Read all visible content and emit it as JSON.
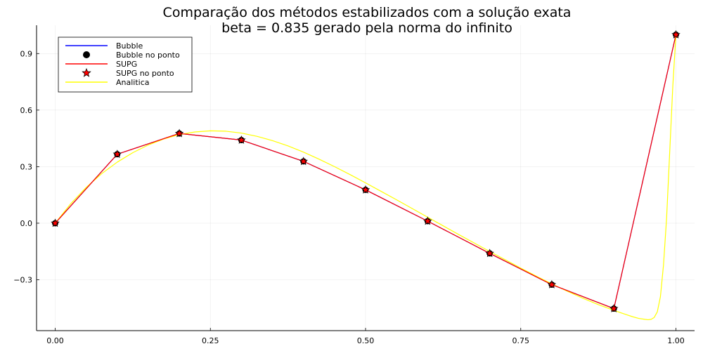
{
  "chart_data": {
    "type": "line",
    "title": "Comparação dos métodos estabilizados com a solução exata",
    "subtitle": "beta = 0.835 gerado pela norma do infinito",
    "xlabel": "",
    "ylabel": "",
    "xlim": [
      -0.03,
      1.03
    ],
    "ylim": [
      -0.57,
      1.05
    ],
    "grid": true,
    "legend_position": "top-left",
    "x_ticks": [
      0.0,
      0.25,
      0.5,
      0.75,
      1.0
    ],
    "x_tick_labels": [
      "0.00",
      "0.25",
      "0.50",
      "0.75",
      "1.00"
    ],
    "y_ticks": [
      -0.3,
      0.0,
      0.3,
      0.6,
      0.9
    ],
    "y_tick_labels": [
      "−0.3",
      "0.0",
      "0.3",
      "0.6",
      "0.9"
    ],
    "x": [
      0.0,
      0.1,
      0.2,
      0.3,
      0.4,
      0.5,
      0.6,
      0.7,
      0.8,
      0.9,
      1.0
    ],
    "series": [
      {
        "name": "Bubble",
        "kind": "line",
        "color": "#0000ff",
        "values": [
          0.0,
          0.366,
          0.476,
          0.441,
          0.328,
          0.177,
          0.011,
          -0.16,
          -0.326,
          -0.453,
          1.0
        ]
      },
      {
        "name": "Bubble no ponto",
        "kind": "marker",
        "marker": "circle",
        "color": "#000000",
        "values": [
          0.0,
          0.366,
          0.476,
          0.441,
          0.328,
          0.177,
          0.011,
          -0.16,
          -0.326,
          -0.453,
          1.0
        ]
      },
      {
        "name": "SUPG",
        "kind": "line",
        "color": "#ff0000",
        "values": [
          0.0,
          0.366,
          0.476,
          0.441,
          0.328,
          0.177,
          0.011,
          -0.16,
          -0.326,
          -0.453,
          1.0
        ]
      },
      {
        "name": "SUPG no ponto",
        "kind": "marker",
        "marker": "star",
        "color": "#ff0000",
        "values": [
          0.0,
          0.366,
          0.476,
          0.441,
          0.328,
          0.177,
          0.011,
          -0.16,
          -0.326,
          -0.453,
          1.0
        ]
      },
      {
        "name": "Analitica",
        "kind": "curve",
        "color": "#ffff00",
        "x": [
          0.0,
          0.025,
          0.05,
          0.075,
          0.1,
          0.125,
          0.15,
          0.175,
          0.2,
          0.225,
          0.25,
          0.275,
          0.3,
          0.325,
          0.35,
          0.375,
          0.4,
          0.425,
          0.45,
          0.475,
          0.5,
          0.525,
          0.55,
          0.575,
          0.6,
          0.625,
          0.65,
          0.675,
          0.7,
          0.725,
          0.75,
          0.775,
          0.8,
          0.825,
          0.85,
          0.875,
          0.9,
          0.91,
          0.92,
          0.93,
          0.94,
          0.95,
          0.955,
          0.96,
          0.965,
          0.97,
          0.975,
          0.98,
          0.985,
          0.99,
          0.995,
          1.0
        ],
        "values": [
          0.0,
          0.103,
          0.19,
          0.263,
          0.324,
          0.374,
          0.415,
          0.447,
          0.47,
          0.484,
          0.49,
          0.488,
          0.478,
          0.461,
          0.438,
          0.41,
          0.377,
          0.34,
          0.3,
          0.258,
          0.214,
          0.169,
          0.124,
          0.078,
          0.032,
          -0.014,
          -0.06,
          -0.105,
          -0.15,
          -0.194,
          -0.238,
          -0.281,
          -0.322,
          -0.361,
          -0.398,
          -0.432,
          -0.462,
          -0.474,
          -0.485,
          -0.496,
          -0.505,
          -0.51,
          -0.512,
          -0.51,
          -0.5,
          -0.47,
          -0.39,
          -0.22,
          0.03,
          0.38,
          0.73,
          1.0
        ]
      }
    ]
  }
}
